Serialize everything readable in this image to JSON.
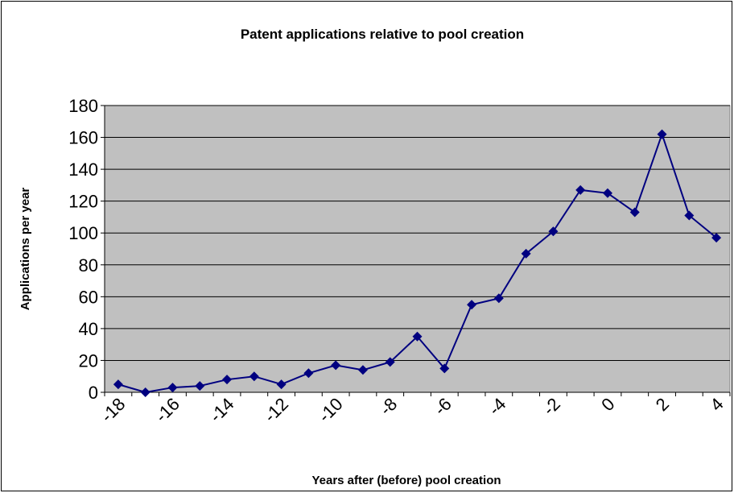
{
  "chart_data": {
    "type": "line",
    "title": "Patent applications relative to pool creation",
    "x_label": "Years after (before) pool creation",
    "y_label": "Applications per year",
    "categories": [
      -18,
      null,
      -16,
      null,
      -14,
      null,
      -12,
      null,
      -10,
      null,
      -8,
      null,
      -6,
      null,
      -4,
      null,
      -2,
      null,
      0,
      null,
      2,
      null,
      4
    ],
    "series": [
      {
        "name": "Applications",
        "color": "#000080",
        "values": [
          5,
          0,
          3,
          4,
          8,
          10,
          5,
          12,
          17,
          14,
          19,
          35,
          15,
          55,
          59,
          87,
          101,
          127,
          125,
          113,
          162,
          111,
          97
        ]
      }
    ],
    "ylim": [
      0,
      180
    ],
    "yticks": [
      0,
      20,
      40,
      60,
      80,
      100,
      120,
      140,
      160,
      180
    ],
    "grid": true,
    "plot_background": "#c0c0c0"
  }
}
